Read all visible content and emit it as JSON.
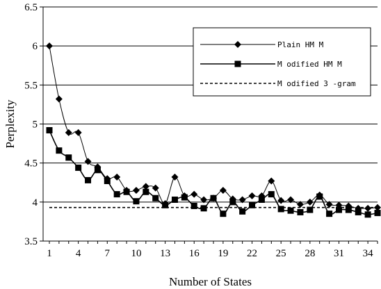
{
  "chart_data": {
    "type": "line",
    "title": "",
    "xlabel": "Number of States",
    "ylabel": "Perplexity",
    "x": [
      1,
      2,
      3,
      4,
      5,
      6,
      7,
      8,
      9,
      10,
      11,
      12,
      13,
      14,
      15,
      16,
      17,
      18,
      19,
      20,
      21,
      22,
      23,
      24,
      25,
      26,
      27,
      28,
      29,
      30,
      31,
      32,
      33,
      34,
      35
    ],
    "x_tick_labels": [
      "1",
      "4",
      "7",
      "10",
      "13",
      "16",
      "19",
      "22",
      "25",
      "28",
      "31",
      "34"
    ],
    "y_tick_labels": [
      "3.5",
      "4",
      "4.5",
      "5",
      "5.5",
      "6",
      "6.5"
    ],
    "xlim": [
      1,
      35
    ],
    "ylim": [
      3.5,
      6.5
    ],
    "grid": "horizontal",
    "legend_position": "top-right",
    "series": [
      {
        "name": "Plain HMM",
        "legend_label": "Plain HM M",
        "marker": "diamond",
        "color": "#000000",
        "values": [
          6.0,
          5.32,
          4.89,
          4.89,
          4.52,
          4.45,
          4.3,
          4.32,
          4.15,
          4.15,
          4.2,
          4.18,
          3.98,
          4.32,
          4.08,
          4.1,
          4.03,
          4.05,
          4.15,
          4.04,
          4.03,
          4.08,
          4.08,
          4.27,
          4.02,
          4.03,
          3.97,
          4.0,
          4.09,
          3.97,
          3.96,
          3.95,
          3.92,
          3.92,
          3.93
        ]
      },
      {
        "name": "Modified HMM",
        "legend_label": "M odified HM M",
        "marker": "square",
        "color": "#000000",
        "values": [
          4.92,
          4.66,
          4.57,
          4.44,
          4.28,
          4.41,
          4.27,
          4.1,
          4.13,
          4.01,
          4.13,
          4.05,
          3.96,
          4.03,
          4.06,
          3.95,
          3.92,
          4.05,
          3.85,
          4.0,
          3.88,
          3.96,
          4.03,
          4.1,
          3.91,
          3.89,
          3.87,
          3.9,
          4.07,
          3.85,
          3.9,
          3.9,
          3.87,
          3.84,
          3.86
        ]
      },
      {
        "name": "Modified 3-gram",
        "legend_label": "M odified 3 -gram",
        "marker": "none",
        "color": "#000000",
        "dash": "dotted",
        "values": [
          3.93,
          3.93,
          3.93,
          3.93,
          3.93,
          3.93,
          3.93,
          3.93,
          3.93,
          3.93,
          3.93,
          3.93,
          3.93,
          3.93,
          3.93,
          3.93,
          3.93,
          3.93,
          3.93,
          3.93,
          3.93,
          3.93,
          3.93,
          3.93,
          3.93,
          3.93,
          3.93,
          3.93,
          3.93,
          3.93,
          3.93,
          3.93,
          3.93,
          3.93,
          3.93
        ]
      }
    ]
  }
}
